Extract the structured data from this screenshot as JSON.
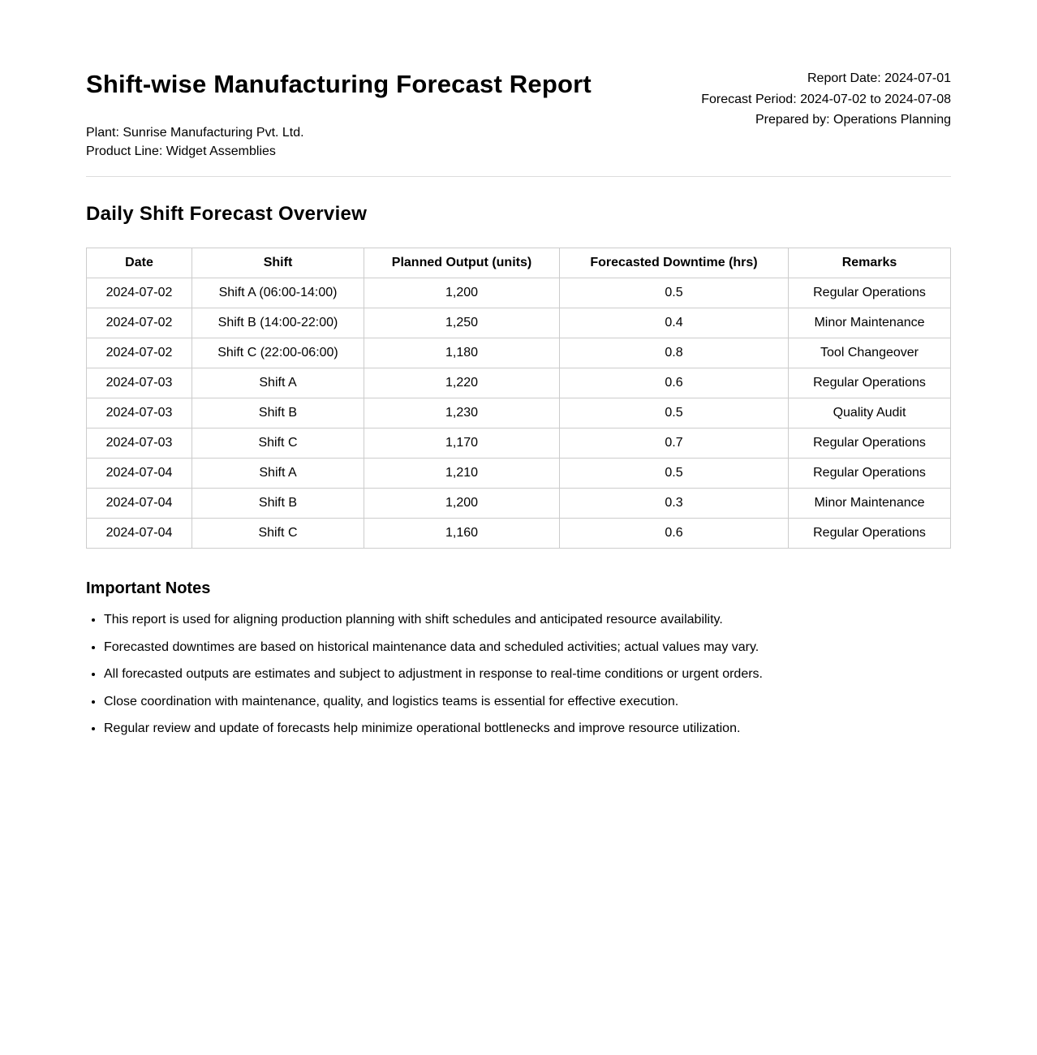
{
  "header": {
    "title": "Shift-wise Manufacturing Forecast Report",
    "plant": "Plant: Sunrise Manufacturing Pvt. Ltd.",
    "product_line": "Product Line: Widget Assemblies",
    "report_date": "Report Date: 2024-07-01",
    "forecast_period": "Forecast Period: 2024-07-02 to 2024-07-08",
    "prepared_by": "Prepared by: Operations Planning"
  },
  "section_title": "Daily Shift Forecast Overview",
  "table": {
    "columns": [
      "Date",
      "Shift",
      "Planned Output (units)",
      "Forecasted Downtime (hrs)",
      "Remarks"
    ],
    "rows": [
      [
        "2024-07-02",
        "Shift A (06:00-14:00)",
        "1,200",
        "0.5",
        "Regular Operations"
      ],
      [
        "2024-07-02",
        "Shift B (14:00-22:00)",
        "1,250",
        "0.4",
        "Minor Maintenance"
      ],
      [
        "2024-07-02",
        "Shift C (22:00-06:00)",
        "1,180",
        "0.8",
        "Tool Changeover"
      ],
      [
        "2024-07-03",
        "Shift A",
        "1,220",
        "0.6",
        "Regular Operations"
      ],
      [
        "2024-07-03",
        "Shift B",
        "1,230",
        "0.5",
        "Quality Audit"
      ],
      [
        "2024-07-03",
        "Shift C",
        "1,170",
        "0.7",
        "Regular Operations"
      ],
      [
        "2024-07-04",
        "Shift A",
        "1,210",
        "0.5",
        "Regular Operations"
      ],
      [
        "2024-07-04",
        "Shift B",
        "1,200",
        "0.3",
        "Minor Maintenance"
      ],
      [
        "2024-07-04",
        "Shift C",
        "1,160",
        "0.6",
        "Regular Operations"
      ]
    ]
  },
  "notes": {
    "title": "Important Notes",
    "items": [
      "This report is used for aligning production planning with shift schedules and anticipated resource availability.",
      "Forecasted downtimes are based on historical maintenance data and scheduled activities; actual values may vary.",
      "All forecasted outputs are estimates and subject to adjustment in response to real-time conditions or urgent orders.",
      "Close coordination with maintenance, quality, and logistics teams is essential for effective execution.",
      "Regular review and update of forecasts help minimize operational bottlenecks and improve resource utilization."
    ]
  }
}
